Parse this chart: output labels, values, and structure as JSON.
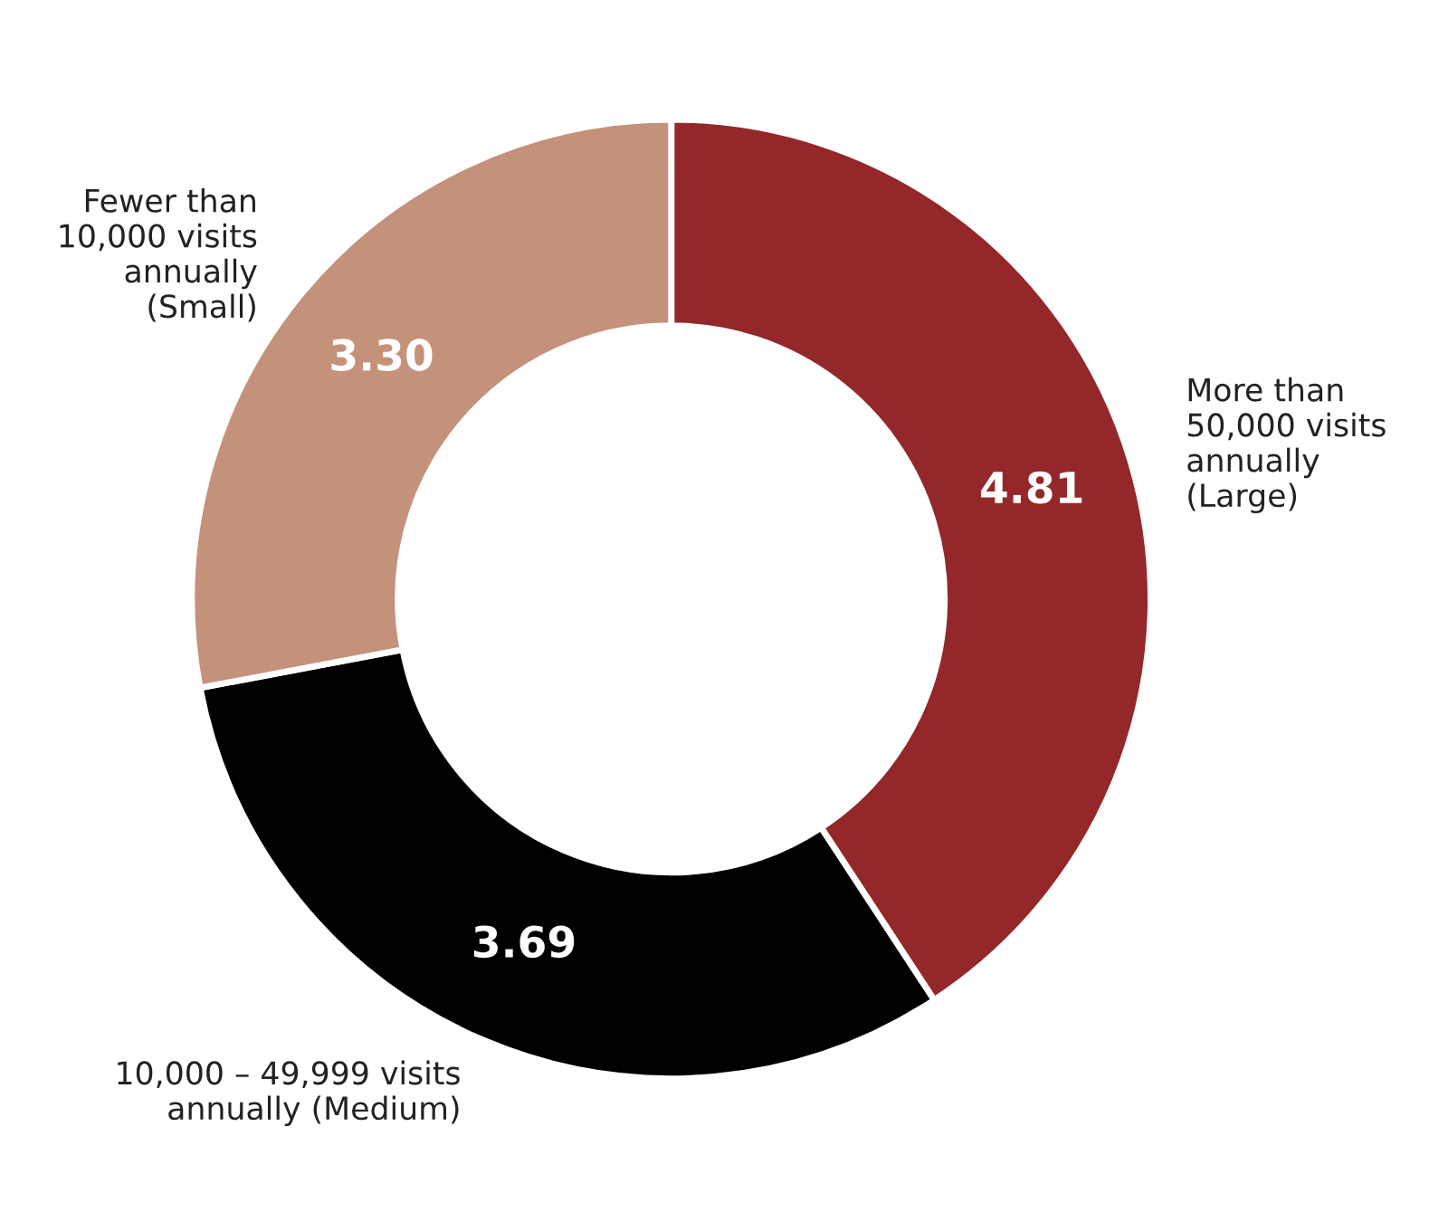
{
  "chart_data": {
    "type": "donut",
    "categories": [
      "More than\n50,000 visits\nannually\n(Large)",
      "10,000 – 49,999 visits\nannually (Medium)",
      "Fewer than\n10,000 visits\nannually\n(Small)"
    ],
    "values": [
      4.81,
      3.69,
      3.3
    ],
    "colors": [
      "#93272a",
      "#000000",
      "#c4917a"
    ],
    "value_labels": [
      "4.81",
      "3.69",
      "3.30"
    ]
  }
}
